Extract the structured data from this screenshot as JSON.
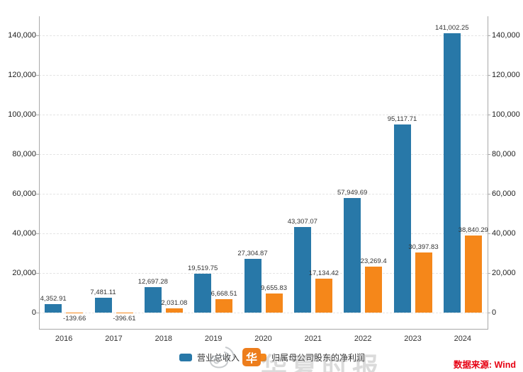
{
  "chart_data": {
    "type": "bar",
    "categories": [
      "2016",
      "2017",
      "2018",
      "2019",
      "2020",
      "2021",
      "2022",
      "2023",
      "2024"
    ],
    "series": [
      {
        "key": "revenue",
        "name": "营业总收入",
        "color": "#2878a8",
        "values": [
          4352.91,
          7481.11,
          12697.28,
          19519.75,
          27304.87,
          43307.07,
          57949.69,
          95117.71,
          141002.25
        ],
        "labels": [
          "4,352.91",
          "7,481.11",
          "12,697.28",
          "19,519.75",
          "27,304.87",
          "43,307.07",
          "57,949.69",
          "95,117.71",
          "141,002.25"
        ]
      },
      {
        "key": "net-profit",
        "name": "归属母公司股东的净利润",
        "color": "#f5871a",
        "values": [
          -139.66,
          -396.61,
          2031.08,
          6668.51,
          9655.83,
          17134.42,
          23269.4,
          30397.83,
          38840.29
        ],
        "labels": [
          "-139.66",
          "-396.61",
          "2,031.08",
          "6,668.51",
          "9,655.83",
          "17,134.42",
          "23,269.4",
          "30,397.83",
          "38,840.29"
        ]
      }
    ],
    "yticks": [
      0,
      20000,
      40000,
      60000,
      80000,
      100000,
      120000,
      140000
    ],
    "ytick_labels": [
      "0",
      "20,000",
      "40,000",
      "60,000",
      "80,000",
      "100,000",
      "120,000",
      "140,000"
    ],
    "ylim": [
      -8000,
      150000
    ],
    "grid": true,
    "legend_position": "bottom",
    "title": ""
  },
  "watermark": {
    "logo_char": "华",
    "logo_color": "#ed7d1c",
    "shadow_text": "华夏时报"
  },
  "source_note": {
    "text": "数据来源: Wind",
    "color": "#e60012"
  }
}
